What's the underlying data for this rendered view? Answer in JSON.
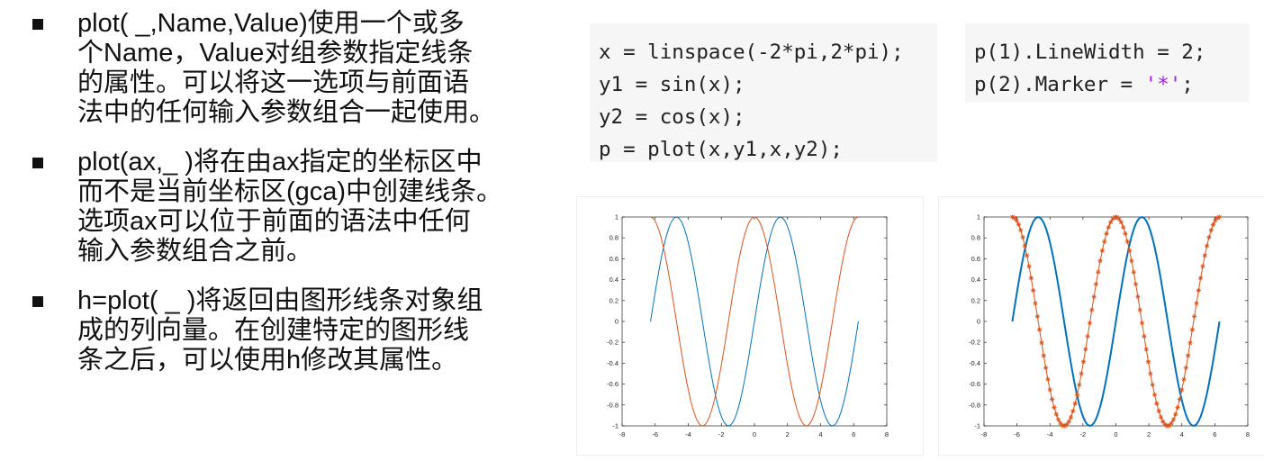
{
  "bullets": [
    {
      "lines": [
        "plot( _,Name,Value)使用一个或多",
        "个Name，Value对组参数指定线条",
        "的属性。可以将这一选项与前面语",
        "法中的任何输入参数组合一起使用。"
      ]
    },
    {
      "lines": [
        "plot(ax,_ )将在由ax指定的坐标区中",
        "而不是当前坐标区(gca)中创建线条。",
        "选项ax可以位于前面的语法中任何",
        "输入参数组合之前。"
      ]
    },
    {
      "lines": [
        "h=plot( _ )将返回由图形线条对象组",
        "成的列向量。在创建特定的图形线",
        "条之后，可以使用h修改其属性。"
      ]
    }
  ],
  "code_left": [
    "x = linspace(-2*pi,2*pi);",
    "y1 = sin(x);",
    "y2 = cos(x);",
    "p = plot(x,y1,x,y2);"
  ],
  "code_right": {
    "line1": "p(1).LineWidth = 2;",
    "line2_prefix": "p(2).Marker = ",
    "line2_string": "'*'",
    "line2_suffix": ";"
  },
  "chart_data": [
    {
      "type": "line",
      "title": "",
      "xlabel": "",
      "ylabel": "",
      "xlim": [
        -8,
        8
      ],
      "ylim": [
        -1,
        1
      ],
      "xticks": [
        "-8",
        "-6",
        "-4",
        "-2",
        "0",
        "2",
        "4",
        "6",
        "8"
      ],
      "yticks": [
        "-1",
        "-0.8",
        "-0.6",
        "-0.4",
        "-0.2",
        "0",
        "0.2",
        "0.4",
        "0.6",
        "0.8",
        "1"
      ],
      "series": [
        {
          "function": "sin(x)",
          "x_range": [
            -6.2832,
            6.2832
          ],
          "points": 100,
          "color": "#0072bd",
          "line_width": 1,
          "marker": "none"
        },
        {
          "function": "cos(x)",
          "x_range": [
            -6.2832,
            6.2832
          ],
          "points": 100,
          "color": "#d95319",
          "line_width": 1,
          "marker": "none"
        }
      ]
    },
    {
      "type": "line",
      "title": "",
      "xlabel": "",
      "ylabel": "",
      "xlim": [
        -8,
        8
      ],
      "ylim": [
        -1,
        1
      ],
      "xticks": [
        "-8",
        "-6",
        "-4",
        "-2",
        "0",
        "2",
        "4",
        "6",
        "8"
      ],
      "yticks": [
        "-1",
        "-0.8",
        "-0.6",
        "-0.4",
        "-0.2",
        "0",
        "0.2",
        "0.4",
        "0.6",
        "0.8",
        "1"
      ],
      "series": [
        {
          "function": "sin(x)",
          "x_range": [
            -6.2832,
            6.2832
          ],
          "points": 100,
          "color": "#0072bd",
          "line_width": 2,
          "marker": "none"
        },
        {
          "function": "cos(x)",
          "x_range": [
            -6.2832,
            6.2832
          ],
          "points": 100,
          "color": "#d95319",
          "line_width": 1,
          "marker": "*"
        }
      ]
    }
  ]
}
